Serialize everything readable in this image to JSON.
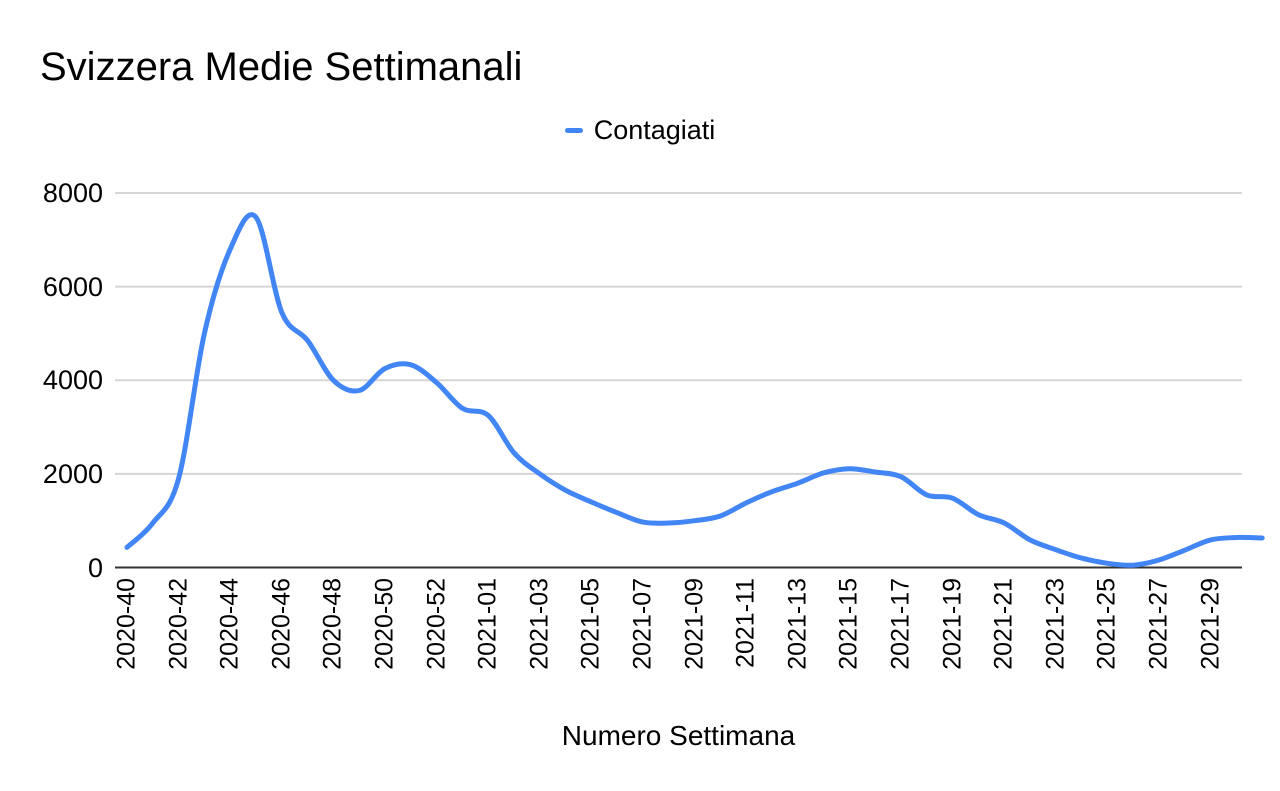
{
  "window": {
    "background": "#ffffff"
  },
  "legend": {
    "items": [
      {
        "label": "Contagiati",
        "swatch_color": "#4285f4"
      }
    ]
  },
  "chart_data": {
    "type": "line",
    "title": "Svizzera Medie Settimanali",
    "xlabel": "Numero Settimana",
    "ylabel": "",
    "legend_position": "top",
    "grid": true,
    "smooth": true,
    "ylim": [
      0,
      8000
    ],
    "yticks": [
      0,
      2000,
      4000,
      6000,
      8000
    ],
    "x_tick_labels": [
      "2020-40",
      "2020-42",
      "2020-44",
      "2020-46",
      "2020-48",
      "2020-50",
      "2020-52",
      "2021-01",
      "2021-03",
      "2021-05",
      "2021-07",
      "2021-09",
      "2021-11",
      "2021-13",
      "2021-15",
      "2021-17",
      "2021-19",
      "2021-21",
      "2021-23",
      "2021-25",
      "2021-27",
      "2021-29"
    ],
    "x": [
      "2020-40",
      "2020-41",
      "2020-42",
      "2020-43",
      "2020-44",
      "2020-45",
      "2020-46",
      "2020-47",
      "2020-48",
      "2020-49",
      "2020-50",
      "2020-51",
      "2020-52",
      "2020-53",
      "2021-01",
      "2021-02",
      "2021-03",
      "2021-04",
      "2021-05",
      "2021-06",
      "2021-07",
      "2021-08",
      "2021-09",
      "2021-10",
      "2021-11",
      "2021-12",
      "2021-13",
      "2021-14",
      "2021-15",
      "2021-16",
      "2021-17",
      "2021-18",
      "2021-19",
      "2021-20",
      "2021-21",
      "2021-22",
      "2021-23",
      "2021-24",
      "2021-25",
      "2021-26",
      "2021-27",
      "2021-28",
      "2021-29",
      "2021-30",
      "2021-31"
    ],
    "series": [
      {
        "name": "Contagiati",
        "color": "#4285f4",
        "values": [
          430,
          950,
          1900,
          5000,
          6800,
          7480,
          5450,
          4850,
          4000,
          3780,
          4250,
          4330,
          3950,
          3400,
          3250,
          2450,
          2000,
          1650,
          1400,
          1170,
          970,
          950,
          1000,
          1100,
          1380,
          1620,
          1800,
          2020,
          2110,
          2040,
          1940,
          1550,
          1480,
          1130,
          950,
          590,
          380,
          200,
          90,
          50,
          160,
          370,
          590,
          640,
          630
        ]
      }
    ],
    "colors": {
      "gridline": "#d5d5d5",
      "axis_line": "#333333",
      "text": "#000000"
    }
  }
}
